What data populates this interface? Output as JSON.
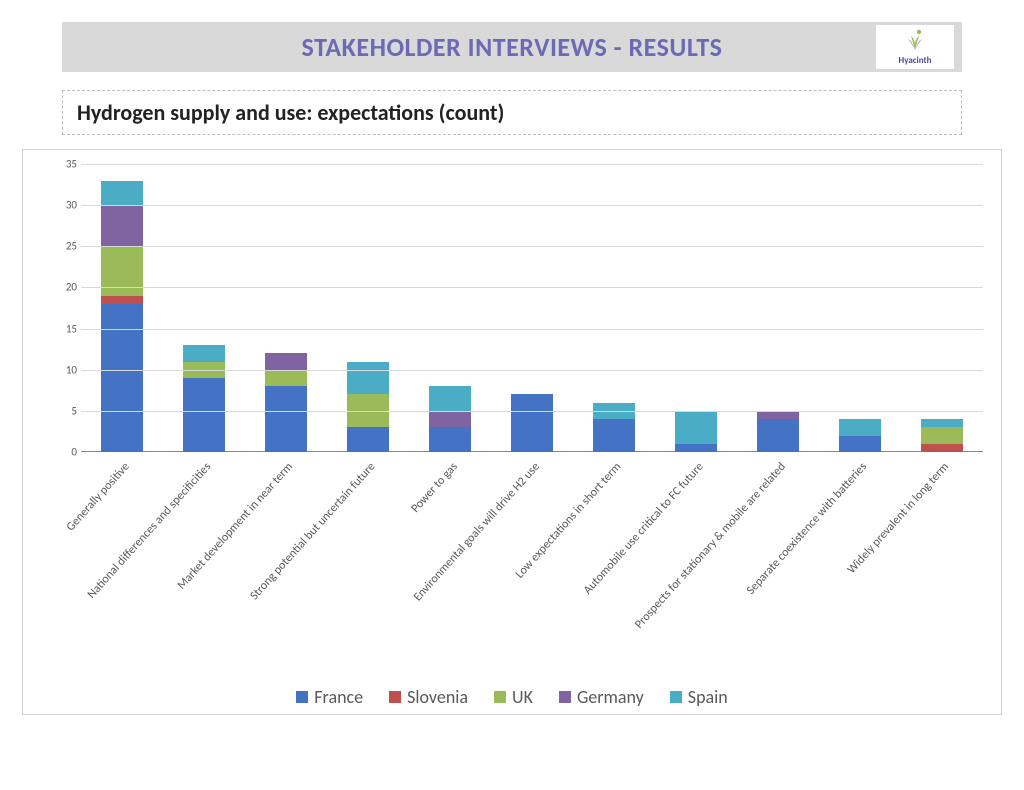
{
  "header": {
    "title": "STAKEHOLDER INTERVIEWS - RESULTS",
    "logo_text": "Hyacinth"
  },
  "subtitle": "Hydrogen supply and use: expectations (count)",
  "chart": {
    "type": "stacked-bar",
    "y_axis": {
      "min": 0,
      "max": 35,
      "step": 5
    },
    "series": [
      {
        "name": "France",
        "color": "#4472c4"
      },
      {
        "name": "Slovenia",
        "color": "#c0504d"
      },
      {
        "name": "UK",
        "color": "#9bbb59"
      },
      {
        "name": "Germany",
        "color": "#8064a2"
      },
      {
        "name": "Spain",
        "color": "#4bacc6"
      }
    ],
    "categories": [
      "Generally positive",
      "National differences and specificities",
      "Market development in near term",
      "Strong potential but uncertain future",
      "Power to gas",
      "Environmental goals will drive H2 use",
      "Low expectations in short term",
      "Automobile use critical to FC future",
      "Prospects for stationary & mobile are related",
      "Separate coexistence with batteries",
      "Widely prevalent in long term"
    ],
    "stacks": [
      [
        18,
        1,
        6,
        5,
        3
      ],
      [
        9,
        0,
        2,
        0,
        2
      ],
      [
        8,
        0,
        2,
        2,
        0
      ],
      [
        3,
        0,
        4,
        0,
        4
      ],
      [
        3,
        0,
        0,
        2,
        3
      ],
      [
        7,
        0,
        0,
        0,
        0
      ],
      [
        4,
        0,
        0,
        0,
        2
      ],
      [
        1,
        0,
        0,
        0,
        4
      ],
      [
        4,
        0,
        0,
        1,
        0
      ],
      [
        2,
        0,
        0,
        0,
        2
      ],
      [
        0,
        1,
        2,
        0,
        1
      ]
    ],
    "bar_width_ratio": 0.52,
    "background": "#ffffff",
    "grid_color": "#d9d9d9",
    "tick_font_size": 11,
    "label_font_size": 12,
    "legend_font_size": 18
  }
}
